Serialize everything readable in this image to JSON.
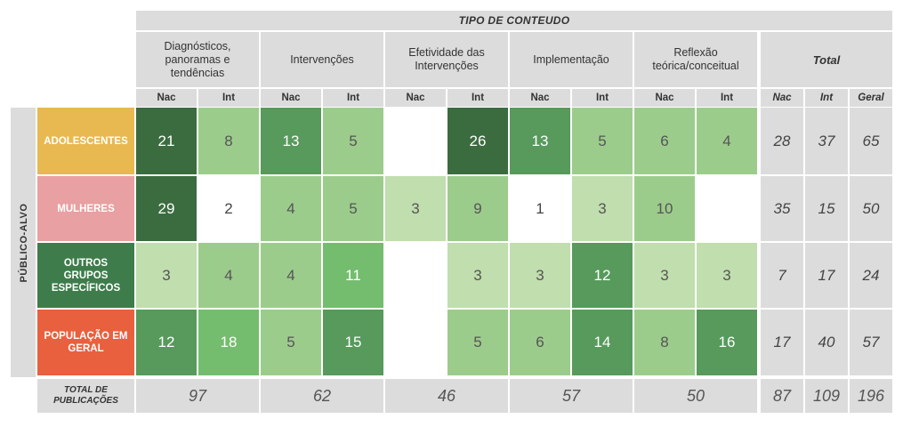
{
  "chart_data": {
    "type": "table",
    "header_title": "TIPO DE CONTEUDO",
    "side_label": "PÚBLICO-ALVO",
    "categories": [
      "Diagnósticos, panoramas e tendências",
      "Intervenções",
      "Efetividade das Intervenções",
      "Implementação",
      "Reflexão teórica/conceitual"
    ],
    "total_header": "Total",
    "sub_labels": {
      "nac": "Nac",
      "int": "Int",
      "geral": "Geral"
    },
    "rows": [
      {
        "label": "ADOLESCENTES",
        "color": "#e8b951",
        "values": [
          "21",
          "8",
          "13",
          "5",
          "",
          "26",
          "13",
          "5",
          "6",
          "4"
        ],
        "totals": [
          "28",
          "37",
          "65"
        ]
      },
      {
        "label": "MULHERES",
        "color": "#e8a0a2",
        "values": [
          "29",
          "2",
          "4",
          "5",
          "3",
          "9",
          "1",
          "3",
          "10",
          ""
        ],
        "totals": [
          "35",
          "15",
          "50"
        ]
      },
      {
        "label": "OUTROS GRUPOS ESPECÍFICOS",
        "color": "#3e7d4b",
        "values": [
          "3",
          "4",
          "4",
          "11",
          "",
          "3",
          "3",
          "12",
          "3",
          "3"
        ],
        "totals": [
          "7",
          "17",
          "24"
        ]
      },
      {
        "label": "POPULAÇÃO EM GERAL",
        "color": "#e9603e",
        "values": [
          "12",
          "18",
          "5",
          "15",
          "",
          "5",
          "6",
          "14",
          "8",
          "16"
        ],
        "totals": [
          "17",
          "40",
          "57"
        ]
      }
    ],
    "footer_label": "TOTAL DE PUBLICAÇÕES",
    "footer_values": [
      "97",
      "62",
      "46",
      "57",
      "50"
    ],
    "footer_totals": [
      "87",
      "109",
      "196"
    ],
    "colors": {
      "very_dark": "#3b6c3f",
      "dark": "#579a5c",
      "medium": "#74bd6e",
      "light": "#9ccc8c",
      "lighter": "#c0deae",
      "empty": "#ffffff",
      "gray": "#dcdcdc"
    }
  }
}
